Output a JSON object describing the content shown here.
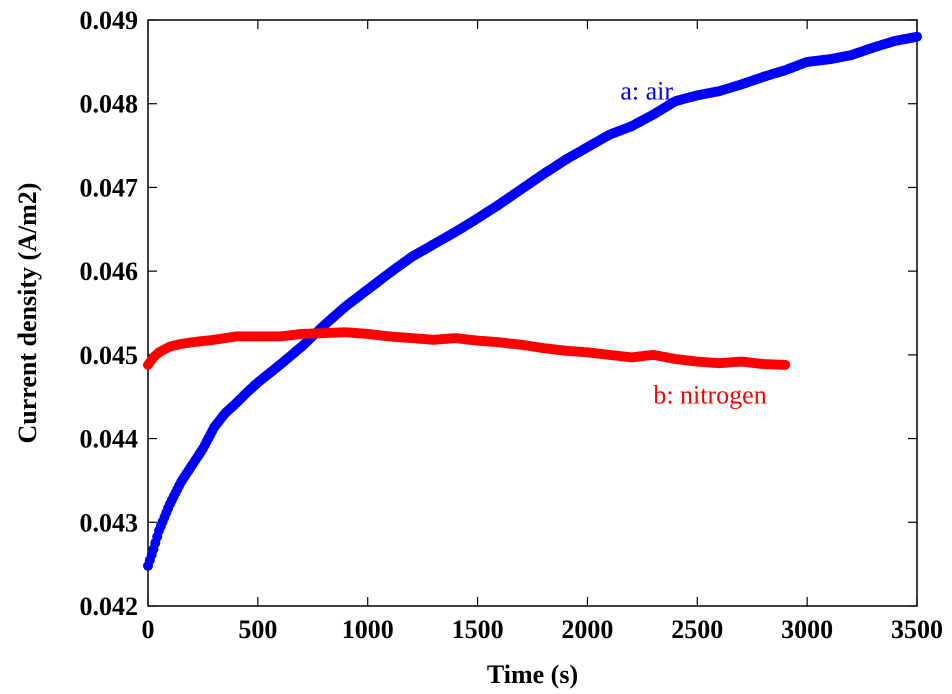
{
  "chart_data": {
    "type": "scatter",
    "xlabel": "Time (s)",
    "ylabel": "Current density (A/m2)",
    "xlim": [
      0,
      3500
    ],
    "ylim": [
      0.042,
      0.049
    ],
    "xticks": [
      "0",
      "500",
      "1000",
      "1500",
      "2000",
      "2500",
      "3000",
      "3500"
    ],
    "yticks": [
      "0.042",
      "0.043",
      "0.044",
      "0.045",
      "0.046",
      "0.047",
      "0.048",
      "0.049"
    ],
    "grid": false,
    "series": [
      {
        "name": "a: air",
        "color": "#0000ff",
        "x": [
          0,
          25,
          50,
          100,
          150,
          200,
          250,
          300,
          350,
          400,
          450,
          500,
          600,
          700,
          800,
          900,
          1000,
          1100,
          1200,
          1300,
          1400,
          1500,
          1600,
          1700,
          1800,
          1900,
          2000,
          2100,
          2200,
          2300,
          2400,
          2500,
          2600,
          2700,
          2800,
          2900,
          3000,
          3100,
          3200,
          3300,
          3400,
          3500
        ],
        "y": [
          0.04248,
          0.04268,
          0.0429,
          0.04322,
          0.04348,
          0.04368,
          0.04388,
          0.04413,
          0.0443,
          0.04442,
          0.04455,
          0.04467,
          0.04488,
          0.0451,
          0.04535,
          0.04558,
          0.04578,
          0.04598,
          0.04617,
          0.04632,
          0.04647,
          0.04663,
          0.0468,
          0.04698,
          0.04716,
          0.04733,
          0.04748,
          0.04763,
          0.04773,
          0.04787,
          0.04803,
          0.0481,
          0.04815,
          0.04823,
          0.04832,
          0.0484,
          0.0485,
          0.04853,
          0.04858,
          0.04867,
          0.04875,
          0.0488
        ]
      },
      {
        "name": "b: nitrogen",
        "color": "#ff0000",
        "x": [
          0,
          25,
          50,
          100,
          150,
          200,
          300,
          400,
          500,
          600,
          700,
          800,
          900,
          1000,
          1100,
          1200,
          1300,
          1400,
          1500,
          1600,
          1700,
          1800,
          1900,
          2000,
          2100,
          2200,
          2300,
          2400,
          2500,
          2600,
          2700,
          2800,
          2900
        ],
        "y": [
          0.04488,
          0.04497,
          0.04503,
          0.0451,
          0.04513,
          0.04515,
          0.04518,
          0.04522,
          0.04522,
          0.04522,
          0.04525,
          0.04526,
          0.04527,
          0.04525,
          0.04522,
          0.0452,
          0.04518,
          0.0452,
          0.04517,
          0.04515,
          0.04512,
          0.04508,
          0.04505,
          0.04503,
          0.045,
          0.04497,
          0.045,
          0.04495,
          0.04492,
          0.0449,
          0.04492,
          0.04489,
          0.04488
        ]
      }
    ],
    "annotations": [
      {
        "text": "a: air",
        "x": 2150,
        "y": 0.04805,
        "color": "#0000ff"
      },
      {
        "text": "b: nitrogen",
        "x": 2300,
        "y": 0.04442,
        "color": "#ff0000"
      }
    ]
  }
}
